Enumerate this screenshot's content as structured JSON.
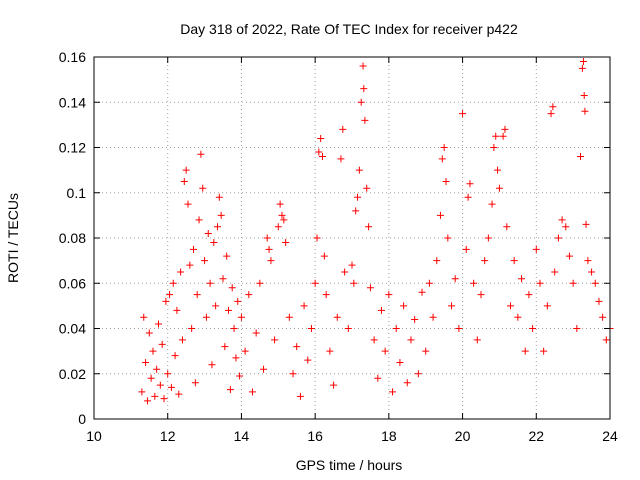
{
  "chart_data": {
    "type": "scatter",
    "title": "Day 318 of 2022, Rate Of TEC Index for receiver p422",
    "xlabel": "GPS time / hours",
    "ylabel": "ROTI / TECUs",
    "xlim": [
      10,
      24
    ],
    "ylim": [
      0,
      0.16
    ],
    "xticks": [
      10,
      12,
      14,
      16,
      18,
      20,
      22,
      24
    ],
    "yticks": [
      0,
      0.02,
      0.04,
      0.06,
      0.08,
      0.1,
      0.12,
      0.14,
      0.16
    ],
    "grid": true,
    "marker": "+",
    "color": "#ff0000",
    "series": [
      {
        "points": [
          [
            11.3,
            0.012
          ],
          [
            11.35,
            0.045
          ],
          [
            11.4,
            0.025
          ],
          [
            11.45,
            0.008
          ],
          [
            11.5,
            0.038
          ],
          [
            11.55,
            0.018
          ],
          [
            11.6,
            0.03
          ],
          [
            11.65,
            0.01
          ],
          [
            11.7,
            0.022
          ],
          [
            11.75,
            0.042
          ],
          [
            11.8,
            0.015
          ],
          [
            11.85,
            0.033
          ],
          [
            11.9,
            0.009
          ],
          [
            11.95,
            0.052
          ],
          [
            12.0,
            0.02
          ],
          [
            12.05,
            0.055
          ],
          [
            12.1,
            0.014
          ],
          [
            12.15,
            0.06
          ],
          [
            12.2,
            0.028
          ],
          [
            12.25,
            0.048
          ],
          [
            12.3,
            0.011
          ],
          [
            12.35,
            0.065
          ],
          [
            12.4,
            0.035
          ],
          [
            12.45,
            0.105
          ],
          [
            12.5,
            0.11
          ],
          [
            12.55,
            0.095
          ],
          [
            12.6,
            0.068
          ],
          [
            12.65,
            0.04
          ],
          [
            12.7,
            0.075
          ],
          [
            12.75,
            0.016
          ],
          [
            12.8,
            0.055
          ],
          [
            12.85,
            0.088
          ],
          [
            12.9,
            0.117
          ],
          [
            12.95,
            0.102
          ],
          [
            13.0,
            0.07
          ],
          [
            13.05,
            0.045
          ],
          [
            13.1,
            0.082
          ],
          [
            13.15,
            0.06
          ],
          [
            13.2,
            0.024
          ],
          [
            13.25,
            0.078
          ],
          [
            13.3,
            0.05
          ],
          [
            13.35,
            0.085
          ],
          [
            13.4,
            0.098
          ],
          [
            13.45,
            0.09
          ],
          [
            13.5,
            0.062
          ],
          [
            13.55,
            0.032
          ],
          [
            13.6,
            0.072
          ],
          [
            13.65,
            0.048
          ],
          [
            13.7,
            0.013
          ],
          [
            13.75,
            0.058
          ],
          [
            13.8,
            0.04
          ],
          [
            13.85,
            0.027
          ],
          [
            13.9,
            0.052
          ],
          [
            13.95,
            0.019
          ],
          [
            14.0,
            0.045
          ],
          [
            14.1,
            0.03
          ],
          [
            14.2,
            0.055
          ],
          [
            14.3,
            0.012
          ],
          [
            14.4,
            0.038
          ],
          [
            14.5,
            0.06
          ],
          [
            14.6,
            0.022
          ],
          [
            14.7,
            0.08
          ],
          [
            14.75,
            0.075
          ],
          [
            14.8,
            0.07
          ],
          [
            14.9,
            0.035
          ],
          [
            15.0,
            0.085
          ],
          [
            15.05,
            0.095
          ],
          [
            15.1,
            0.09
          ],
          [
            15.15,
            0.088
          ],
          [
            15.2,
            0.078
          ],
          [
            15.3,
            0.045
          ],
          [
            15.4,
            0.02
          ],
          [
            15.5,
            0.032
          ],
          [
            15.6,
            0.01
          ],
          [
            15.7,
            0.05
          ],
          [
            15.8,
            0.026
          ],
          [
            15.9,
            0.04
          ],
          [
            16.0,
            0.06
          ],
          [
            16.05,
            0.08
          ],
          [
            16.1,
            0.118
          ],
          [
            16.15,
            0.124
          ],
          [
            16.2,
            0.116
          ],
          [
            16.25,
            0.072
          ],
          [
            16.3,
            0.055
          ],
          [
            16.4,
            0.03
          ],
          [
            16.5,
            0.015
          ],
          [
            16.6,
            0.045
          ],
          [
            16.7,
            0.115
          ],
          [
            16.75,
            0.128
          ],
          [
            16.8,
            0.065
          ],
          [
            16.9,
            0.04
          ],
          [
            17.0,
            0.068
          ],
          [
            17.05,
            0.06
          ],
          [
            17.1,
            0.092
          ],
          [
            17.15,
            0.098
          ],
          [
            17.2,
            0.11
          ],
          [
            17.25,
            0.14
          ],
          [
            17.3,
            0.156
          ],
          [
            17.32,
            0.146
          ],
          [
            17.35,
            0.132
          ],
          [
            17.4,
            0.102
          ],
          [
            17.45,
            0.085
          ],
          [
            17.5,
            0.058
          ],
          [
            17.6,
            0.035
          ],
          [
            17.7,
            0.018
          ],
          [
            17.8,
            0.048
          ],
          [
            17.9,
            0.03
          ],
          [
            18.0,
            0.055
          ],
          [
            18.1,
            0.012
          ],
          [
            18.2,
            0.04
          ],
          [
            18.3,
            0.025
          ],
          [
            18.4,
            0.05
          ],
          [
            18.5,
            0.016
          ],
          [
            18.6,
            0.035
          ],
          [
            18.7,
            0.044
          ],
          [
            18.8,
            0.02
          ],
          [
            18.9,
            0.056
          ],
          [
            19.0,
            0.03
          ],
          [
            19.1,
            0.06
          ],
          [
            19.2,
            0.045
          ],
          [
            19.3,
            0.07
          ],
          [
            19.4,
            0.09
          ],
          [
            19.45,
            0.115
          ],
          [
            19.5,
            0.12
          ],
          [
            19.55,
            0.105
          ],
          [
            19.6,
            0.08
          ],
          [
            19.7,
            0.05
          ],
          [
            19.8,
            0.062
          ],
          [
            19.9,
            0.04
          ],
          [
            20.0,
            0.135
          ],
          [
            20.1,
            0.075
          ],
          [
            20.15,
            0.098
          ],
          [
            20.2,
            0.104
          ],
          [
            20.3,
            0.06
          ],
          [
            20.4,
            0.035
          ],
          [
            20.5,
            0.055
          ],
          [
            20.6,
            0.07
          ],
          [
            20.7,
            0.08
          ],
          [
            20.8,
            0.095
          ],
          [
            20.85,
            0.12
          ],
          [
            20.9,
            0.125
          ],
          [
            20.95,
            0.11
          ],
          [
            21.0,
            0.102
          ],
          [
            21.1,
            0.125
          ],
          [
            21.15,
            0.128
          ],
          [
            21.2,
            0.085
          ],
          [
            21.3,
            0.05
          ],
          [
            21.4,
            0.07
          ],
          [
            21.5,
            0.045
          ],
          [
            21.6,
            0.062
          ],
          [
            21.7,
            0.03
          ],
          [
            21.8,
            0.055
          ],
          [
            21.9,
            0.04
          ],
          [
            22.0,
            0.075
          ],
          [
            22.1,
            0.06
          ],
          [
            22.2,
            0.03
          ],
          [
            22.3,
            0.05
          ],
          [
            22.4,
            0.135
          ],
          [
            22.45,
            0.138
          ],
          [
            22.5,
            0.065
          ],
          [
            22.6,
            0.08
          ],
          [
            22.7,
            0.088
          ],
          [
            22.8,
            0.085
          ],
          [
            22.9,
            0.072
          ],
          [
            23.0,
            0.06
          ],
          [
            23.1,
            0.04
          ],
          [
            23.2,
            0.116
          ],
          [
            23.25,
            0.155
          ],
          [
            23.28,
            0.158
          ],
          [
            23.3,
            0.143
          ],
          [
            23.32,
            0.136
          ],
          [
            23.35,
            0.086
          ],
          [
            23.4,
            0.07
          ],
          [
            23.5,
            0.065
          ],
          [
            23.6,
            0.06
          ],
          [
            23.7,
            0.052
          ],
          [
            23.8,
            0.045
          ],
          [
            23.9,
            0.035
          ],
          [
            24.0,
            0.04
          ]
        ]
      }
    ]
  }
}
